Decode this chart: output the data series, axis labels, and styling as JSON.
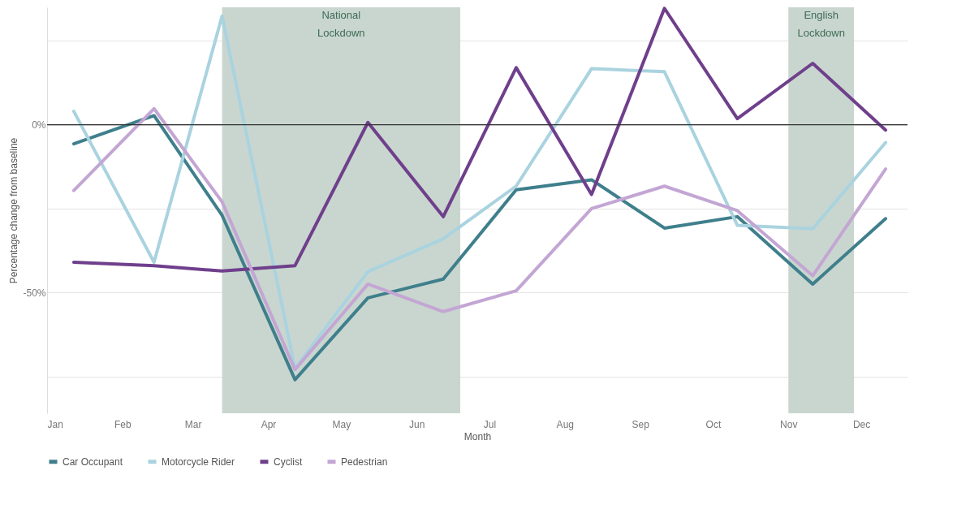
{
  "chart_data": {
    "type": "line",
    "xlabel": "Month",
    "ylabel": "Percentage change from baseline",
    "x": [
      "--01-12",
      "--02-14",
      "--03-13",
      "--04-12",
      "--05-12",
      "--06-12",
      "--07-12",
      "--08-12",
      "--09-11",
      "--10-11",
      "--11-11",
      "--12-11"
    ],
    "series": [
      {
        "name": "Car Occupant",
        "color": "#3f7f8c",
        "values": [
          -5.7,
          2.7,
          -27,
          -76,
          -51.6,
          -46,
          -19.4,
          -16.4,
          -30.8,
          -27.4,
          -47.5,
          -28
        ]
      },
      {
        "name": "Motorcycle Rider",
        "color": "#a9d3df",
        "values": [
          4,
          -41,
          32.4,
          -72.6,
          -43.8,
          -34,
          -18.3,
          16.7,
          15.8,
          -30,
          -31,
          -5.3
        ]
      },
      {
        "name": "Cyclist",
        "color": "#6f3f8c",
        "values": [
          -41,
          -42,
          -43.6,
          -42,
          0.7,
          -27.4,
          17,
          -20.8,
          34.7,
          1.8,
          18.3,
          -1.6
        ]
      },
      {
        "name": "Pedestrian",
        "color": "#c3a6d3",
        "values": [
          -19.6,
          4.8,
          -23,
          -73,
          -47.5,
          -55.7,
          -49.5,
          -25,
          -18.3,
          -25.6,
          -45,
          -13.2
        ]
      }
    ],
    "xlim": [
      "--01-01",
      "--12-20"
    ],
    "xticks": [
      {
        "value": "--01-01",
        "label": "Jan"
      },
      {
        "value": "--02-01",
        "label": "Feb"
      },
      {
        "value": "--03-01",
        "label": "Mar"
      },
      {
        "value": "--04-01",
        "label": "Apr"
      },
      {
        "value": "--05-01",
        "label": "May"
      },
      {
        "value": "--06-01",
        "label": "Jun"
      },
      {
        "value": "--07-01",
        "label": "Jul"
      },
      {
        "value": "--08-01",
        "label": "Aug"
      },
      {
        "value": "--09-01",
        "label": "Sep"
      },
      {
        "value": "--10-01",
        "label": "Oct"
      },
      {
        "value": "--11-01",
        "label": "Nov"
      },
      {
        "value": "--12-01",
        "label": "Dec"
      }
    ],
    "ylim": [
      -86,
      35
    ],
    "yticks": [
      {
        "value": 25,
        "label": null
      },
      {
        "value": 0,
        "label": "0%"
      },
      {
        "value": -25,
        "label": null
      },
      {
        "value": -50,
        "label": "-50%"
      },
      {
        "value": -75,
        "label": null
      }
    ],
    "bands": [
      {
        "axis": "x",
        "from": "--03-13",
        "to": "--06-19",
        "label": "National Lockdown",
        "color": "#c9d6cf"
      },
      {
        "axis": "x",
        "from": "--11-01",
        "to": "--11-28",
        "label": "English Lockdown",
        "color": "#c9d6cf"
      }
    ],
    "ref_lines": [
      {
        "axis": "y",
        "value": 0,
        "color": "#333333"
      }
    ],
    "grid": "y",
    "legend": "bottom",
    "line_style": "solid",
    "marker": "none"
  }
}
